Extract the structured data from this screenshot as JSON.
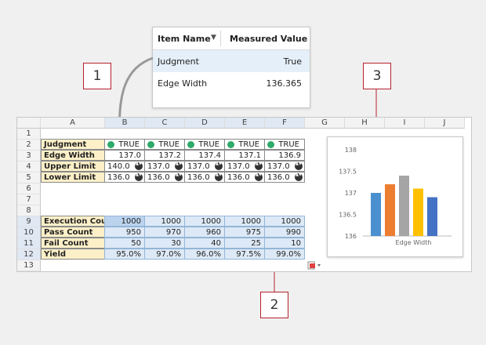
{
  "popup": {
    "col_item": "Item Name",
    "col_value": "Measured Value",
    "rows": [
      {
        "name": "Judgment",
        "value": "True"
      },
      {
        "name": "Edge Width",
        "value": "136.365"
      }
    ]
  },
  "callouts": [
    "1",
    "2",
    "3"
  ],
  "sheet": {
    "columns": [
      "A",
      "B",
      "C",
      "D",
      "E",
      "F",
      "G",
      "H",
      "I",
      "J"
    ],
    "rows": [
      "1",
      "2",
      "3",
      "4",
      "5",
      "6",
      "7",
      "8",
      "9",
      "10",
      "11",
      "12",
      "13"
    ],
    "labels": {
      "judgment": "Judgment",
      "edge_width": "Edge Width",
      "upper_limit": "Upper Limit",
      "lower_limit": "Lower Limit",
      "execution_count": "Execution Count",
      "pass_count": "Pass Count",
      "fail_count": "Fail Count",
      "yield": "Yield"
    },
    "judgment": [
      "TRUE",
      "TRUE",
      "TRUE",
      "TRUE",
      "TRUE"
    ],
    "edge_width": [
      "137.0",
      "137.2",
      "137.4",
      "137.1",
      "136.9"
    ],
    "upper_limit": [
      "140.0",
      "137.0",
      "137.0",
      "137.0",
      "137.0"
    ],
    "lower_limit": [
      "136.0",
      "136.0",
      "136.0",
      "136.0",
      "136.0"
    ],
    "execution_count": [
      "1000",
      "1000",
      "1000",
      "1000",
      "1000"
    ],
    "pass_count": [
      "950",
      "970",
      "960",
      "975",
      "990"
    ],
    "fail_count": [
      "50",
      "30",
      "40",
      "25",
      "10"
    ],
    "yield": [
      "95.0%",
      "97.0%",
      "96.0%",
      "97.5%",
      "99.0%"
    ]
  },
  "chart_data": {
    "type": "bar",
    "categories": [
      "Edge Width"
    ],
    "xlabel": "Edge Width",
    "ylim": [
      136,
      138
    ],
    "yticks": [
      "138",
      "137.5",
      "137",
      "136.5",
      "136"
    ],
    "series": [
      {
        "values": [
          137.0
        ],
        "color": "#4a90d0"
      },
      {
        "values": [
          137.2
        ],
        "color": "#ed7d31"
      },
      {
        "values": [
          137.4
        ],
        "color": "#a5a5a5"
      },
      {
        "values": [
          137.1
        ],
        "color": "#ffc000"
      },
      {
        "values": [
          136.9
        ],
        "color": "#4472c4"
      }
    ]
  }
}
